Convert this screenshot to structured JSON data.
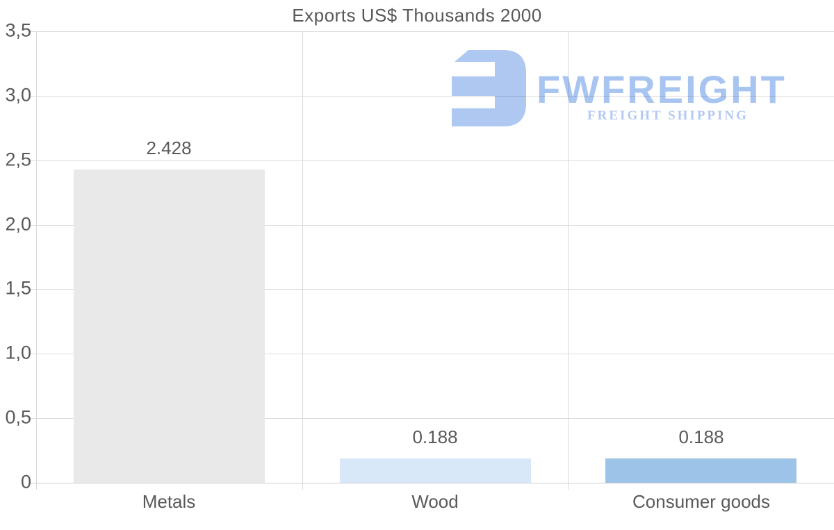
{
  "title": "Exports US$ Thousands 2000",
  "watermark": {
    "brand": "FWFREIGHT",
    "tagline": "FREIGHT SHIPPING",
    "mark_color": "#abc6f2",
    "brand_color": "#a5c3f1",
    "tagline_color": "#b0c7f2"
  },
  "chart_data": {
    "type": "bar",
    "title": "Exports US$ Thousands 2000",
    "xlabel": "",
    "ylabel": "",
    "categories": [
      "Metals",
      "Wood",
      "Consumer goods"
    ],
    "values": [
      2.428,
      0.188,
      0.188
    ],
    "value_labels": [
      "2.428",
      "0.188",
      "0.188"
    ],
    "bar_colors": [
      "#e9e9e9",
      "#d9e8f9",
      "#9cc3e8"
    ],
    "ylim": [
      0,
      3.5
    ],
    "y_ticks": [
      {
        "label": "0",
        "value": 0
      },
      {
        "label": "0,5",
        "value": 0.5
      },
      {
        "label": "1,0",
        "value": 1.0
      },
      {
        "label": "1,5",
        "value": 1.5
      },
      {
        "label": "2,0",
        "value": 2.0
      },
      {
        "label": "2,5",
        "value": 2.5
      },
      {
        "label": "3,0",
        "value": 3.0
      },
      {
        "label": "3,5",
        "value": 3.5
      }
    ],
    "grid": "horizontal gridlines at each y tick, vertical separators between categories",
    "legend": "none",
    "text_color": "#595959",
    "gridline_color": "#dcdcdc"
  }
}
